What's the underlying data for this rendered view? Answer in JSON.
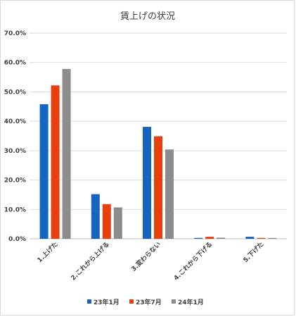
{
  "chart_data": {
    "type": "bar",
    "title": "賃上げの状況",
    "categories": [
      "1.上げた",
      "2.これから上げる",
      "3.変わらない",
      "4.これから下げる",
      "5.下げた"
    ],
    "series": [
      {
        "name": "23年1月",
        "color": "#1565c0",
        "values": [
          45.8,
          15.2,
          38.1,
          0.3,
          0.7
        ]
      },
      {
        "name": "23年7月",
        "color": "#e8400c",
        "values": [
          52.2,
          11.8,
          34.9,
          0.7,
          0.3
        ]
      },
      {
        "name": "24年1月",
        "color": "#8c8c8c",
        "values": [
          57.8,
          10.7,
          30.4,
          0.4,
          0.3
        ]
      }
    ],
    "ylim": [
      0,
      70
    ],
    "yticks": [
      "0.0%",
      "10.0%",
      "20.0%",
      "30.0%",
      "40.0%",
      "50.0%",
      "60.0%",
      "70.0%"
    ],
    "grid": true,
    "legend_position": "bottom"
  }
}
